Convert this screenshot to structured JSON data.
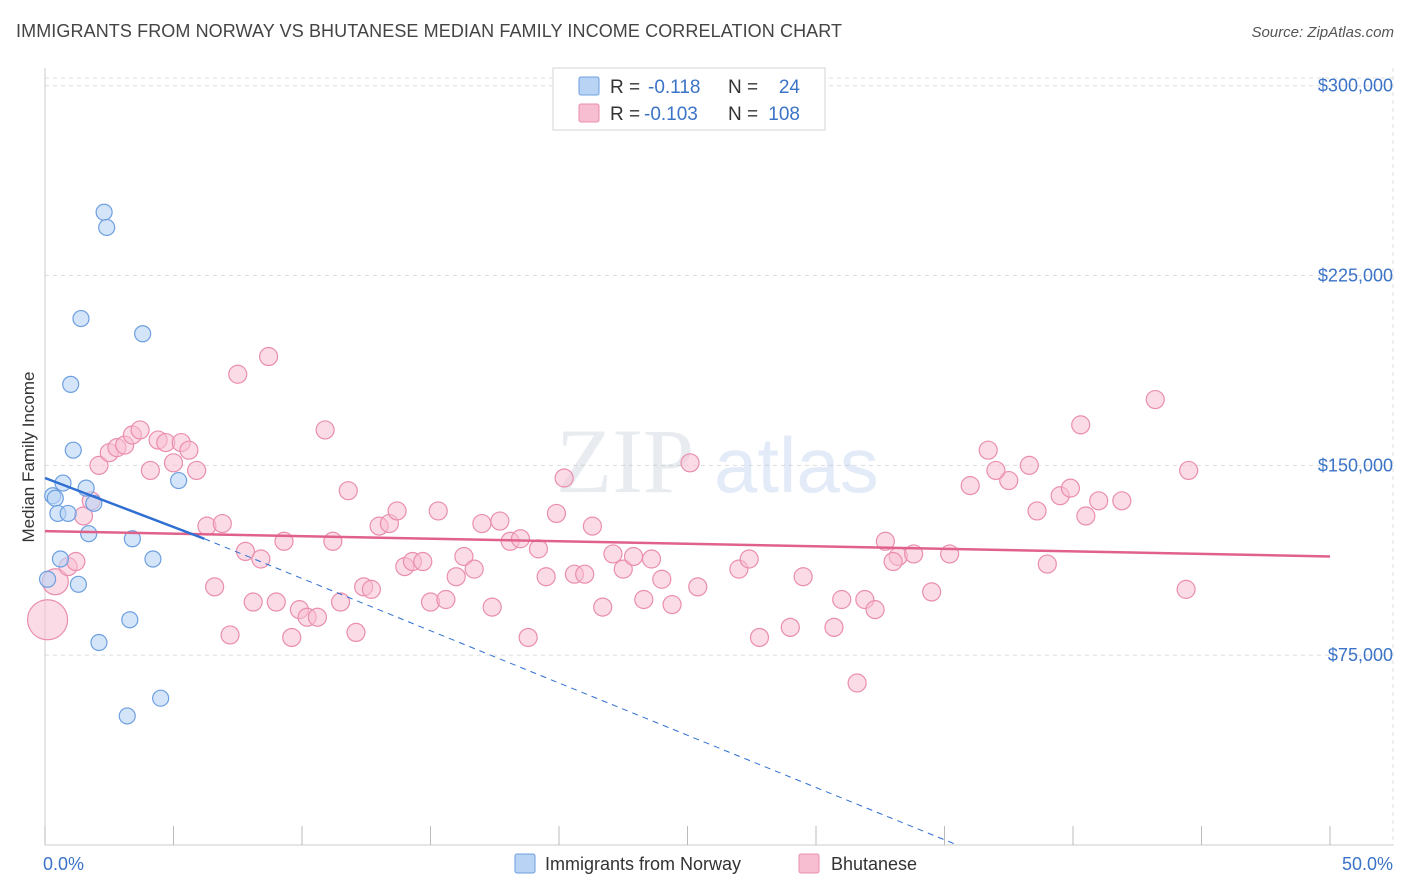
{
  "title": "IMMIGRANTS FROM NORWAY VS BHUTANESE MEDIAN FAMILY INCOME CORRELATION CHART",
  "source": "Source: ZipAtlas.com",
  "watermark": {
    "zip": "ZIP",
    "atlas": "atlas"
  },
  "legend": {
    "items": [
      {
        "r_label": "R =",
        "r_value": "-0.118",
        "n_label": "N =",
        "n_value": "24"
      },
      {
        "r_label": "R =",
        "r_value": "-0.103",
        "n_label": "N =",
        "n_value": "108"
      }
    ]
  },
  "bottom_legend": [
    "Immigrants from Norway",
    "Bhutanese"
  ],
  "colors": {
    "norway_fill": "#b9d3f5",
    "norway_stroke": "#6d9fe0",
    "norway_line": "#2f6fd1",
    "bhutanese_fill": "#f7bed1",
    "bhutanese_stroke": "#ea8eae",
    "bhutanese_line": "#e0628b",
    "tick_label": "#3b73c7",
    "grid": "#dddddd"
  },
  "chart_data": {
    "type": "scatter",
    "title": "IMMIGRANTS FROM NORWAY VS BHUTANESE MEDIAN FAMILY INCOME CORRELATION CHART",
    "xlabel": "",
    "ylabel": "Median Family Income",
    "xlim": [
      0,
      50
    ],
    "ylim": [
      0,
      307000
    ],
    "x_tick_labels": [
      "0.0%",
      "50.0%"
    ],
    "y_ticks": [
      75000,
      150000,
      225000,
      300000
    ],
    "y_tick_labels": [
      "$75,000",
      "$150,000",
      "$225,000",
      "$300,000"
    ],
    "grid": "horizontal dashed",
    "legend_position": "top-center",
    "series": [
      {
        "name": "Immigrants from Norway",
        "stats": {
          "R": -0.118,
          "N": 24
        },
        "trend": {
          "x0": 0,
          "y0": 145000,
          "x1": 6.2,
          "y1": 121000,
          "dashed_to_x": 35.5,
          "dashed_to_y": 0
        },
        "points": [
          [
            2.3,
            250000
          ],
          [
            2.4,
            244000
          ],
          [
            1.4,
            208000
          ],
          [
            3.8,
            202000
          ],
          [
            1.0,
            182000
          ],
          [
            1.1,
            156000
          ],
          [
            0.7,
            143000
          ],
          [
            1.6,
            141000
          ],
          [
            5.2,
            144000
          ],
          [
            0.3,
            138000
          ],
          [
            0.4,
            137000
          ],
          [
            1.9,
            135000
          ],
          [
            0.5,
            131000
          ],
          [
            0.9,
            131000
          ],
          [
            1.7,
            123000
          ],
          [
            3.4,
            121000
          ],
          [
            0.6,
            113000
          ],
          [
            4.2,
            113000
          ],
          [
            0.1,
            105000
          ],
          [
            1.3,
            103000
          ],
          [
            3.3,
            89000
          ],
          [
            2.1,
            80000
          ],
          [
            4.5,
            58000
          ],
          [
            3.2,
            51000
          ]
        ]
      },
      {
        "name": "Bhutanese",
        "stats": {
          "R": -0.103,
          "N": 108
        },
        "trend": {
          "x0": 0,
          "y0": 124000,
          "x1": 50,
          "y1": 114000
        },
        "points": [
          [
            0.1,
            89000
          ],
          [
            0.4,
            104000
          ],
          [
            0.9,
            110000
          ],
          [
            1.2,
            112000
          ],
          [
            1.5,
            130000
          ],
          [
            1.8,
            136000
          ],
          [
            2.1,
            150000
          ],
          [
            2.5,
            155000
          ],
          [
            2.8,
            157000
          ],
          [
            3.1,
            158000
          ],
          [
            3.4,
            162000
          ],
          [
            3.7,
            164000
          ],
          [
            4.1,
            148000
          ],
          [
            4.4,
            160000
          ],
          [
            4.7,
            159000
          ],
          [
            5.0,
            151000
          ],
          [
            5.3,
            159000
          ],
          [
            5.6,
            156000
          ],
          [
            5.9,
            148000
          ],
          [
            6.3,
            126000
          ],
          [
            6.6,
            102000
          ],
          [
            6.9,
            127000
          ],
          [
            7.2,
            83000
          ],
          [
            7.5,
            186000
          ],
          [
            7.8,
            116000
          ],
          [
            8.1,
            96000
          ],
          [
            8.4,
            113000
          ],
          [
            8.7,
            193000
          ],
          [
            9.0,
            96000
          ],
          [
            9.3,
            120000
          ],
          [
            9.6,
            82000
          ],
          [
            9.9,
            93000
          ],
          [
            10.2,
            90000
          ],
          [
            10.6,
            90000
          ],
          [
            10.9,
            164000
          ],
          [
            11.2,
            120000
          ],
          [
            11.5,
            96000
          ],
          [
            11.8,
            140000
          ],
          [
            12.1,
            84000
          ],
          [
            12.4,
            102000
          ],
          [
            12.7,
            101000
          ],
          [
            13.0,
            126000
          ],
          [
            13.4,
            127000
          ],
          [
            13.7,
            132000
          ],
          [
            14.0,
            110000
          ],
          [
            14.3,
            112000
          ],
          [
            14.7,
            112000
          ],
          [
            15.0,
            96000
          ],
          [
            15.3,
            132000
          ],
          [
            15.6,
            97000
          ],
          [
            16.0,
            106000
          ],
          [
            16.3,
            114000
          ],
          [
            16.7,
            109000
          ],
          [
            17.0,
            127000
          ],
          [
            17.4,
            94000
          ],
          [
            17.7,
            128000
          ],
          [
            18.1,
            120000
          ],
          [
            18.5,
            121000
          ],
          [
            18.8,
            82000
          ],
          [
            19.2,
            117000
          ],
          [
            19.5,
            106000
          ],
          [
            19.9,
            131000
          ],
          [
            20.2,
            145000
          ],
          [
            20.6,
            107000
          ],
          [
            21.0,
            107000
          ],
          [
            21.3,
            126000
          ],
          [
            21.7,
            94000
          ],
          [
            22.1,
            115000
          ],
          [
            22.5,
            109000
          ],
          [
            22.9,
            114000
          ],
          [
            23.3,
            97000
          ],
          [
            23.6,
            113000
          ],
          [
            24.0,
            105000
          ],
          [
            24.4,
            95000
          ],
          [
            25.1,
            151000
          ],
          [
            25.4,
            102000
          ],
          [
            27.0,
            109000
          ],
          [
            27.4,
            113000
          ],
          [
            27.8,
            82000
          ],
          [
            29.0,
            86000
          ],
          [
            29.5,
            106000
          ],
          [
            30.7,
            86000
          ],
          [
            31.0,
            97000
          ],
          [
            31.6,
            64000
          ],
          [
            31.9,
            97000
          ],
          [
            32.3,
            93000
          ],
          [
            32.7,
            120000
          ],
          [
            33.2,
            114000
          ],
          [
            33.8,
            115000
          ],
          [
            34.5,
            100000
          ],
          [
            35.2,
            115000
          ],
          [
            36.0,
            142000
          ],
          [
            36.7,
            156000
          ],
          [
            37.5,
            144000
          ],
          [
            38.3,
            150000
          ],
          [
            38.6,
            132000
          ],
          [
            39.0,
            111000
          ],
          [
            39.5,
            138000
          ],
          [
            39.9,
            141000
          ],
          [
            40.3,
            166000
          ],
          [
            40.5,
            130000
          ],
          [
            41.0,
            136000
          ],
          [
            41.9,
            136000
          ],
          [
            33.0,
            112000
          ],
          [
            37.0,
            148000
          ],
          [
            43.2,
            176000
          ],
          [
            44.5,
            148000
          ],
          [
            44.4,
            101000
          ]
        ]
      }
    ]
  }
}
